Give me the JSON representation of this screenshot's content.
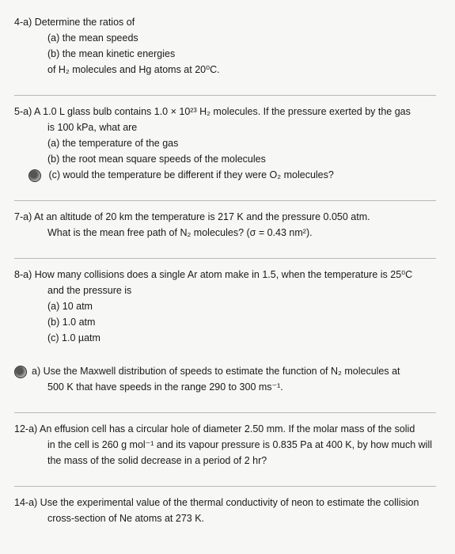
{
  "q4": {
    "num": "4-a)",
    "stem": "Determine the ratios of",
    "a": "(a) the mean speeds",
    "b": "(b) the mean kinetic energies",
    "tail": "of H₂ molecules and Hg atoms at 20⁰C."
  },
  "q5": {
    "num": "5-a)",
    "stem1": "A 1.0 L glass bulb contains 1.0 × 10²³ H₂ molecules.  If the pressure exerted by the gas",
    "stem2": "is 100 kPa, what are",
    "a": "(a) the temperature of the gas",
    "b": "(b) the root mean square speeds of the molecules",
    "c": "(c) would the temperature be different if they were O₂ molecules?"
  },
  "q7": {
    "num": "7-a)",
    "l1": "At an altitude of 20 km the temperature is 217 K and the pressure 0.050 atm.",
    "l2": "What is the mean free path of N₂ molecules?  (σ = 0.43 nm²)."
  },
  "q8": {
    "num": "8-a)",
    "l1": "How many collisions does a single Ar atom make in 1.5, when the temperature is 25⁰C",
    "l2": "and the pressure is",
    "a": "(a) 10 atm",
    "b": "(b) 1.0 atm",
    "c": "(c) 1.0 µatm"
  },
  "q9": {
    "num": "a)",
    "l1": "Use the Maxwell distribution of speeds to estimate the function of N₂ molecules at",
    "l2": "500 K that have speeds in the range 290 to 300 ms⁻¹."
  },
  "q12": {
    "num": "12-a)",
    "l1": "An effusion cell has a circular hole of diameter 2.50 mm.  If the molar mass of the solid",
    "l2": "in the cell is 260 g mol⁻¹ and its vapour pressure is 0.835 Pa at 400 K, by how much will",
    "l3": "the mass of the solid decrease in a period of 2 hr?"
  },
  "q14": {
    "num": "14-a)",
    "l1": "Use the experimental value of the thermal conductivity of neon to estimate the collision",
    "l2": "cross-section of Ne atoms at 273 K."
  }
}
